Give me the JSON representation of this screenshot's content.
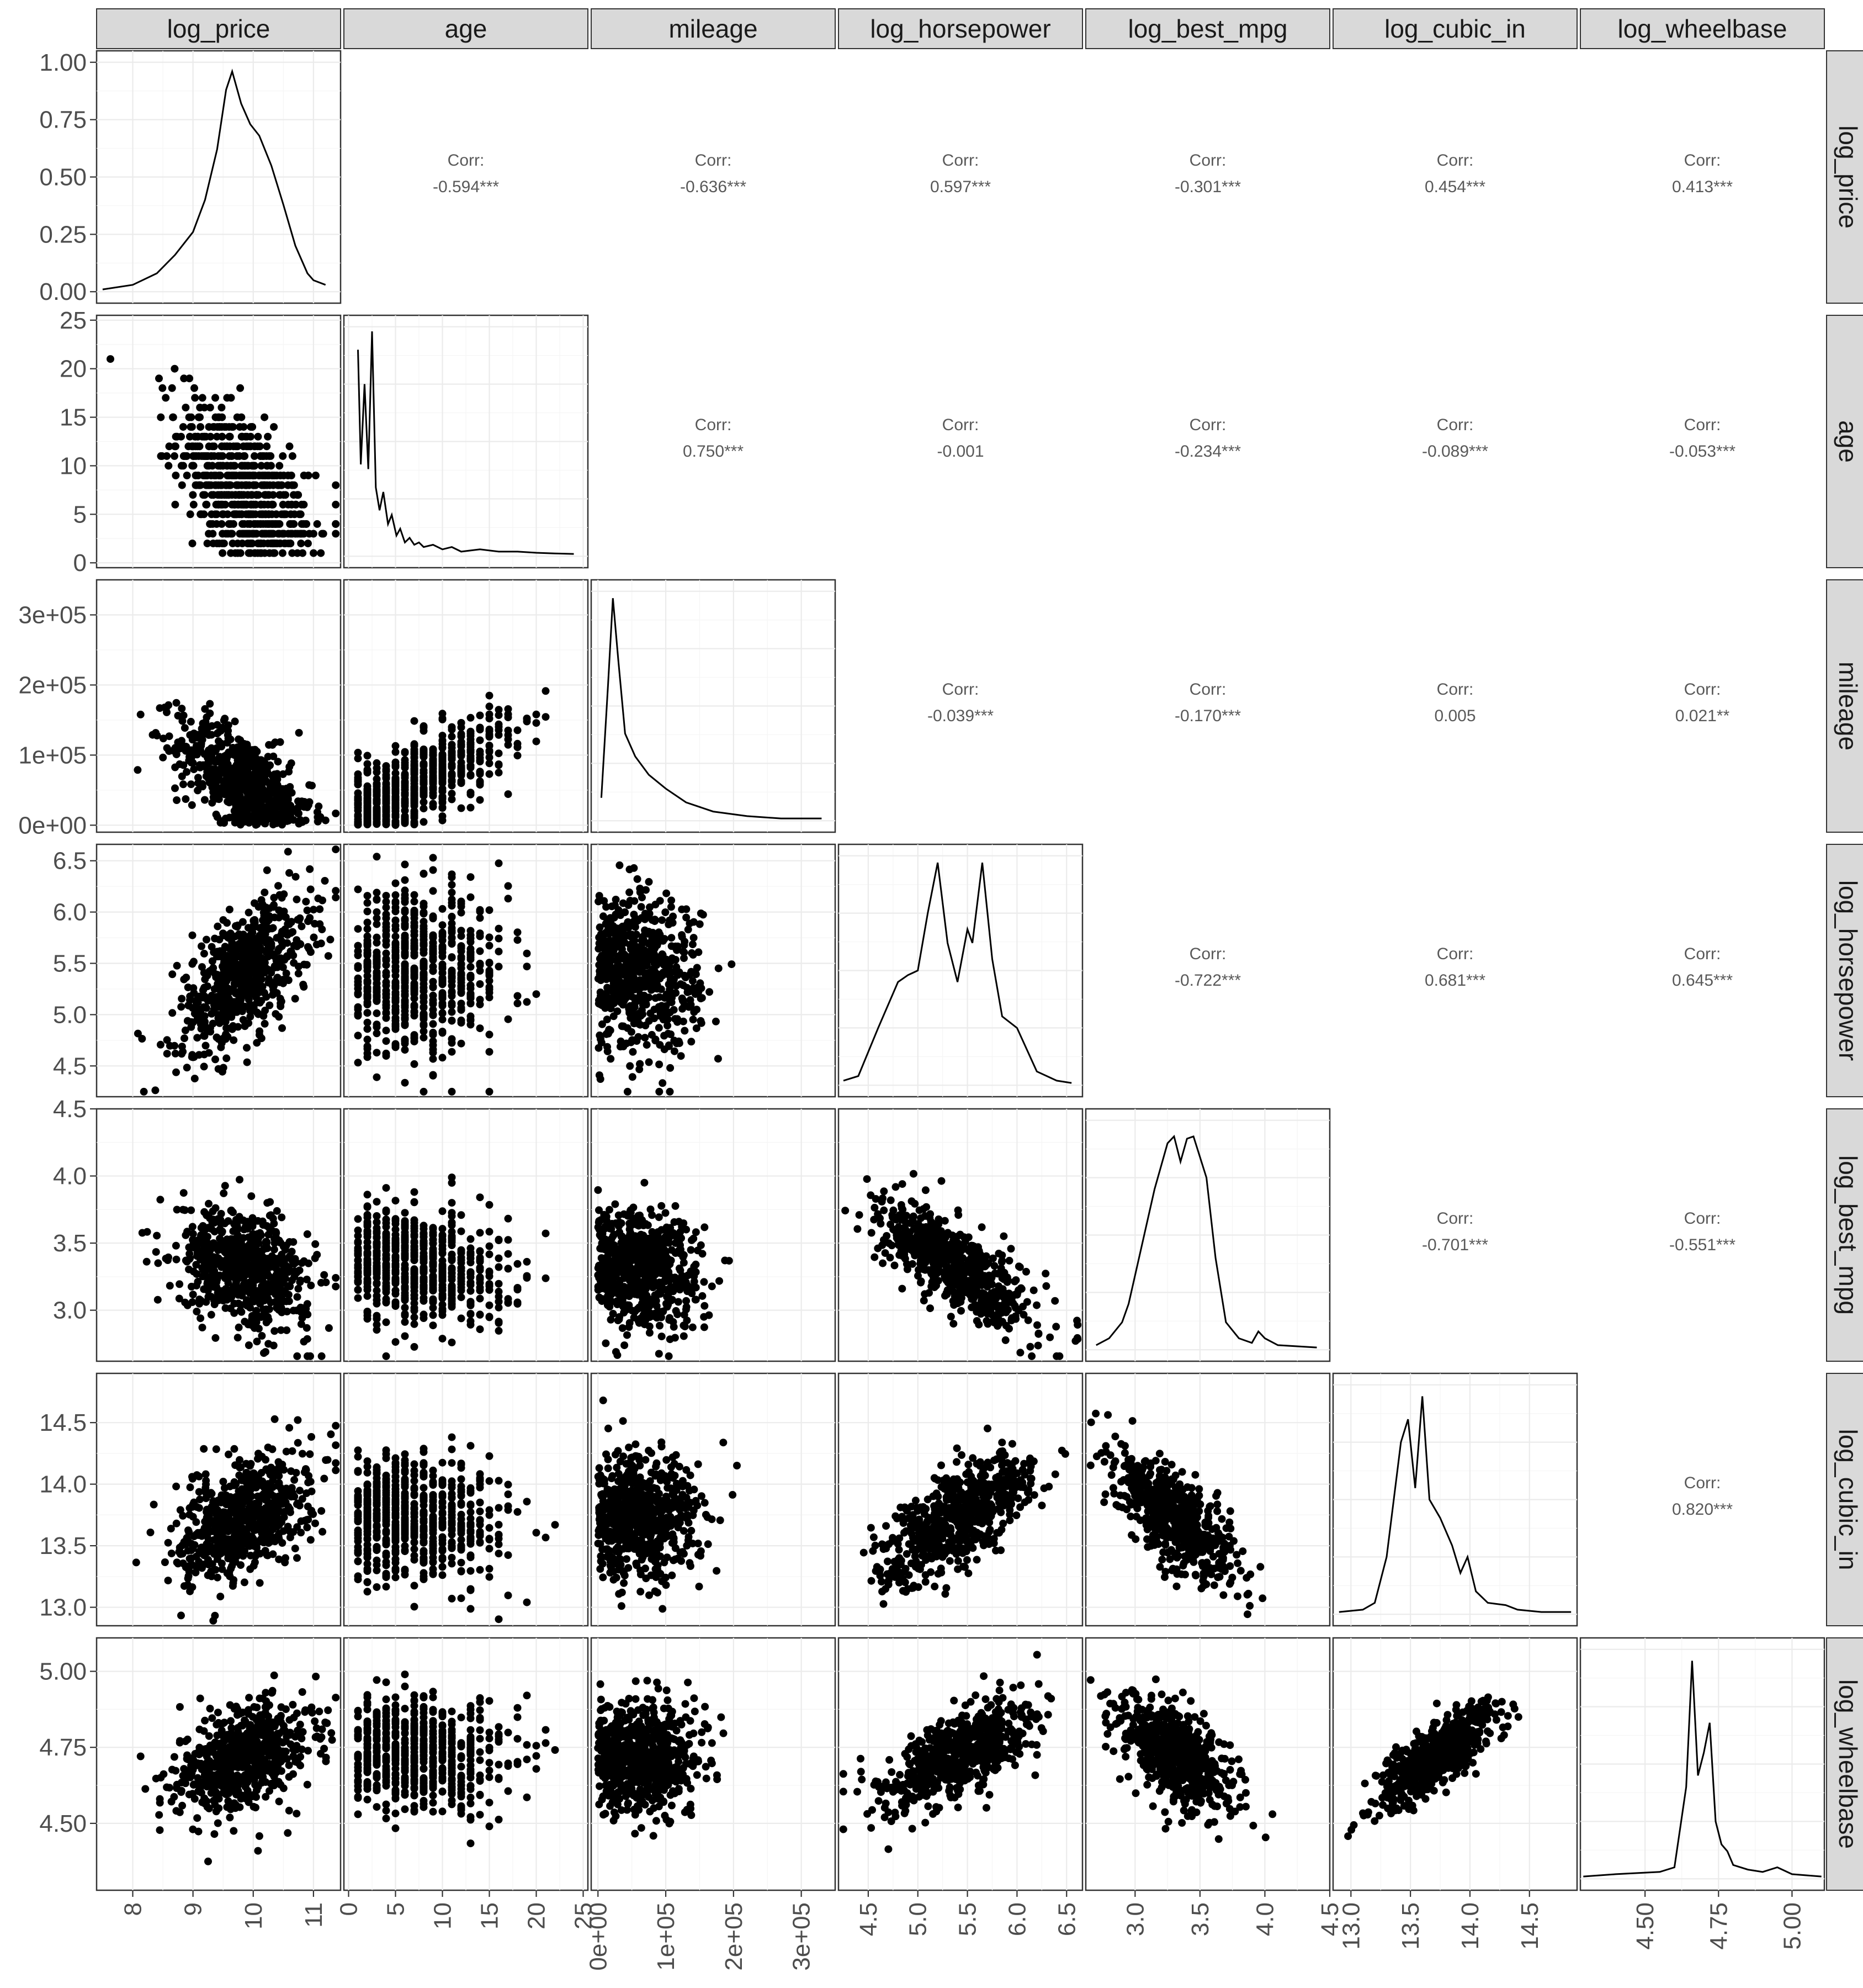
{
  "chart_data": {
    "type": "scatter-matrix",
    "title": "",
    "variables": [
      "log_price",
      "age",
      "mileage",
      "log_horsepower",
      "log_best_mpg",
      "log_cubic_in",
      "log_wheelbase"
    ],
    "axes": {
      "log_price": {
        "range": [
          7.4,
          11.45
        ],
        "ticks": [
          8,
          9,
          10,
          11
        ],
        "tick_labels": [
          "8",
          "9",
          "10",
          "11"
        ]
      },
      "age": {
        "range": [
          -0.5,
          25.5
        ],
        "ticks": [
          0,
          5,
          10,
          15,
          20,
          25
        ],
        "tick_labels": [
          "0",
          "5",
          "10",
          "15",
          "20",
          "25"
        ]
      },
      "mileage": {
        "range": [
          -10000,
          350000
        ],
        "ticks": [
          0,
          100000,
          200000,
          300000
        ],
        "tick_labels": [
          "0e+00",
          "1e+05",
          "2e+05",
          "3e+05"
        ]
      },
      "log_horsepower": {
        "range": [
          4.2,
          6.66
        ],
        "ticks": [
          4.5,
          5.0,
          5.5,
          6.0,
          6.5
        ],
        "tick_labels": [
          "4.5",
          "5.0",
          "5.5",
          "6.0",
          "6.5"
        ]
      },
      "log_best_mpg": {
        "range": [
          2.62,
          4.5
        ],
        "ticks": [
          3.0,
          3.5,
          4.0,
          4.5
        ],
        "tick_labels": [
          "3.0",
          "3.5",
          "4.0",
          "4.5"
        ]
      },
      "log_cubic_in": {
        "range": [
          12.85,
          14.9
        ],
        "ticks": [
          13.0,
          13.5,
          14.0,
          14.5
        ],
        "tick_labels": [
          "13.0",
          "13.5",
          "14.0",
          "14.5"
        ]
      },
      "log_wheelbase": {
        "range": [
          4.28,
          5.11
        ],
        "ticks": [
          4.5,
          4.75,
          5.0
        ],
        "tick_labels": [
          "4.50",
          "4.75",
          "5.00"
        ]
      }
    },
    "density_axis": {
      "range": [
        -0.05,
        1.05
      ],
      "ticks": [
        0,
        0.25,
        0.5,
        0.75,
        1.0
      ],
      "tick_labels": [
        "0.00",
        "0.25",
        "0.50",
        "0.75",
        "1.00"
      ]
    },
    "correlations": [
      {
        "row": "log_price",
        "col": "age",
        "label": "Corr:",
        "value": "-0.594***"
      },
      {
        "row": "log_price",
        "col": "mileage",
        "label": "Corr:",
        "value": "-0.636***"
      },
      {
        "row": "log_price",
        "col": "log_horsepower",
        "label": "Corr:",
        "value": "0.597***"
      },
      {
        "row": "log_price",
        "col": "log_best_mpg",
        "label": "Corr:",
        "value": "-0.301***"
      },
      {
        "row": "log_price",
        "col": "log_cubic_in",
        "label": "Corr:",
        "value": "0.454***"
      },
      {
        "row": "log_price",
        "col": "log_wheelbase",
        "label": "Corr:",
        "value": "0.413***"
      },
      {
        "row": "age",
        "col": "mileage",
        "label": "Corr:",
        "value": "0.750***"
      },
      {
        "row": "age",
        "col": "log_horsepower",
        "label": "Corr:",
        "value": "-0.001"
      },
      {
        "row": "age",
        "col": "log_best_mpg",
        "label": "Corr:",
        "value": "-0.234***"
      },
      {
        "row": "age",
        "col": "log_cubic_in",
        "label": "Corr:",
        "value": "-0.089***"
      },
      {
        "row": "age",
        "col": "log_wheelbase",
        "label": "Corr:",
        "value": "-0.053***"
      },
      {
        "row": "mileage",
        "col": "log_horsepower",
        "label": "Corr:",
        "value": "-0.039***"
      },
      {
        "row": "mileage",
        "col": "log_best_mpg",
        "label": "Corr:",
        "value": "-0.170***"
      },
      {
        "row": "mileage",
        "col": "log_cubic_in",
        "label": "Corr:",
        "value": "0.005"
      },
      {
        "row": "mileage",
        "col": "log_wheelbase",
        "label": "Corr:",
        "value": "0.021**"
      },
      {
        "row": "log_horsepower",
        "col": "log_best_mpg",
        "label": "Corr:",
        "value": "-0.722***"
      },
      {
        "row": "log_horsepower",
        "col": "log_cubic_in",
        "label": "Corr:",
        "value": "0.681***"
      },
      {
        "row": "log_horsepower",
        "col": "log_wheelbase",
        "label": "Corr:",
        "value": "0.645***"
      },
      {
        "row": "log_best_mpg",
        "col": "log_cubic_in",
        "label": "Corr:",
        "value": "-0.701***"
      },
      {
        "row": "log_best_mpg",
        "col": "log_wheelbase",
        "label": "Corr:",
        "value": "-0.551***"
      },
      {
        "row": "log_cubic_in",
        "col": "log_wheelbase",
        "label": "Corr:",
        "value": "0.820***"
      }
    ],
    "densities": {
      "log_price": [
        [
          7.5,
          0.01
        ],
        [
          8.0,
          0.03
        ],
        [
          8.4,
          0.08
        ],
        [
          8.7,
          0.16
        ],
        [
          9.0,
          0.26
        ],
        [
          9.2,
          0.4
        ],
        [
          9.4,
          0.62
        ],
        [
          9.55,
          0.88
        ],
        [
          9.65,
          0.96
        ],
        [
          9.8,
          0.82
        ],
        [
          9.95,
          0.73
        ],
        [
          10.1,
          0.68
        ],
        [
          10.3,
          0.55
        ],
        [
          10.5,
          0.38
        ],
        [
          10.7,
          0.2
        ],
        [
          10.9,
          0.08
        ],
        [
          11.0,
          0.05
        ],
        [
          11.2,
          0.03
        ]
      ],
      "age": [
        [
          1,
          0.9
        ],
        [
          1.3,
          0.4
        ],
        [
          1.7,
          0.75
        ],
        [
          2.1,
          0.38
        ],
        [
          2.5,
          0.98
        ],
        [
          2.9,
          0.3
        ],
        [
          3.3,
          0.2
        ],
        [
          3.7,
          0.28
        ],
        [
          4.2,
          0.14
        ],
        [
          4.6,
          0.18
        ],
        [
          5.1,
          0.09
        ],
        [
          5.5,
          0.12
        ],
        [
          6,
          0.06
        ],
        [
          6.5,
          0.08
        ],
        [
          7,
          0.05
        ],
        [
          7.5,
          0.06
        ],
        [
          8,
          0.04
        ],
        [
          9,
          0.05
        ],
        [
          10,
          0.03
        ],
        [
          11,
          0.04
        ],
        [
          12,
          0.02
        ],
        [
          14,
          0.03
        ],
        [
          16,
          0.02
        ],
        [
          18,
          0.02
        ],
        [
          20,
          0.015
        ],
        [
          22,
          0.012
        ],
        [
          24,
          0.01
        ]
      ],
      "mileage": [
        [
          5000,
          0.1
        ],
        [
          15000,
          0.6
        ],
        [
          22000,
          0.97
        ],
        [
          30000,
          0.7
        ],
        [
          40000,
          0.38
        ],
        [
          55000,
          0.28
        ],
        [
          75000,
          0.2
        ],
        [
          100000,
          0.14
        ],
        [
          130000,
          0.08
        ],
        [
          170000,
          0.04
        ],
        [
          220000,
          0.02
        ],
        [
          270000,
          0.01
        ],
        [
          330000,
          0.01
        ]
      ],
      "log_horsepower": [
        [
          4.25,
          0.02
        ],
        [
          4.4,
          0.04
        ],
        [
          4.6,
          0.25
        ],
        [
          4.8,
          0.45
        ],
        [
          4.9,
          0.48
        ],
        [
          5.0,
          0.5
        ],
        [
          5.1,
          0.75
        ],
        [
          5.2,
          0.97
        ],
        [
          5.3,
          0.62
        ],
        [
          5.4,
          0.45
        ],
        [
          5.5,
          0.68
        ],
        [
          5.55,
          0.62
        ],
        [
          5.65,
          0.97
        ],
        [
          5.75,
          0.55
        ],
        [
          5.85,
          0.3
        ],
        [
          6.0,
          0.25
        ],
        [
          6.2,
          0.06
        ],
        [
          6.4,
          0.02
        ],
        [
          6.55,
          0.01
        ]
      ],
      "log_best_mpg": [
        [
          2.7,
          0.02
        ],
        [
          2.8,
          0.05
        ],
        [
          2.9,
          0.12
        ],
        [
          2.95,
          0.2
        ],
        [
          3.05,
          0.45
        ],
        [
          3.15,
          0.7
        ],
        [
          3.25,
          0.9
        ],
        [
          3.3,
          0.93
        ],
        [
          3.35,
          0.82
        ],
        [
          3.4,
          0.92
        ],
        [
          3.45,
          0.93
        ],
        [
          3.55,
          0.75
        ],
        [
          3.62,
          0.4
        ],
        [
          3.7,
          0.12
        ],
        [
          3.8,
          0.05
        ],
        [
          3.9,
          0.03
        ],
        [
          3.95,
          0.08
        ],
        [
          4.0,
          0.05
        ],
        [
          4.1,
          0.02
        ],
        [
          4.4,
          0.01
        ]
      ],
      "log_cubic_in": [
        [
          12.9,
          0.01
        ],
        [
          13.1,
          0.02
        ],
        [
          13.2,
          0.05
        ],
        [
          13.3,
          0.25
        ],
        [
          13.42,
          0.75
        ],
        [
          13.48,
          0.85
        ],
        [
          13.54,
          0.55
        ],
        [
          13.6,
          0.95
        ],
        [
          13.66,
          0.5
        ],
        [
          13.75,
          0.42
        ],
        [
          13.85,
          0.3
        ],
        [
          13.92,
          0.18
        ],
        [
          13.98,
          0.25
        ],
        [
          14.05,
          0.1
        ],
        [
          14.15,
          0.05
        ],
        [
          14.3,
          0.04
        ],
        [
          14.4,
          0.02
        ],
        [
          14.6,
          0.01
        ],
        [
          14.85,
          0.01
        ]
      ],
      "log_wheelbase": [
        [
          4.29,
          0.01
        ],
        [
          4.4,
          0.02
        ],
        [
          4.55,
          0.03
        ],
        [
          4.6,
          0.05
        ],
        [
          4.64,
          0.4
        ],
        [
          4.66,
          0.95
        ],
        [
          4.68,
          0.45
        ],
        [
          4.7,
          0.55
        ],
        [
          4.72,
          0.68
        ],
        [
          4.74,
          0.25
        ],
        [
          4.76,
          0.15
        ],
        [
          4.78,
          0.12
        ],
        [
          4.8,
          0.06
        ],
        [
          4.85,
          0.04
        ],
        [
          4.9,
          0.03
        ],
        [
          4.95,
          0.05
        ],
        [
          5.0,
          0.02
        ],
        [
          5.1,
          0.01
        ]
      ]
    }
  }
}
